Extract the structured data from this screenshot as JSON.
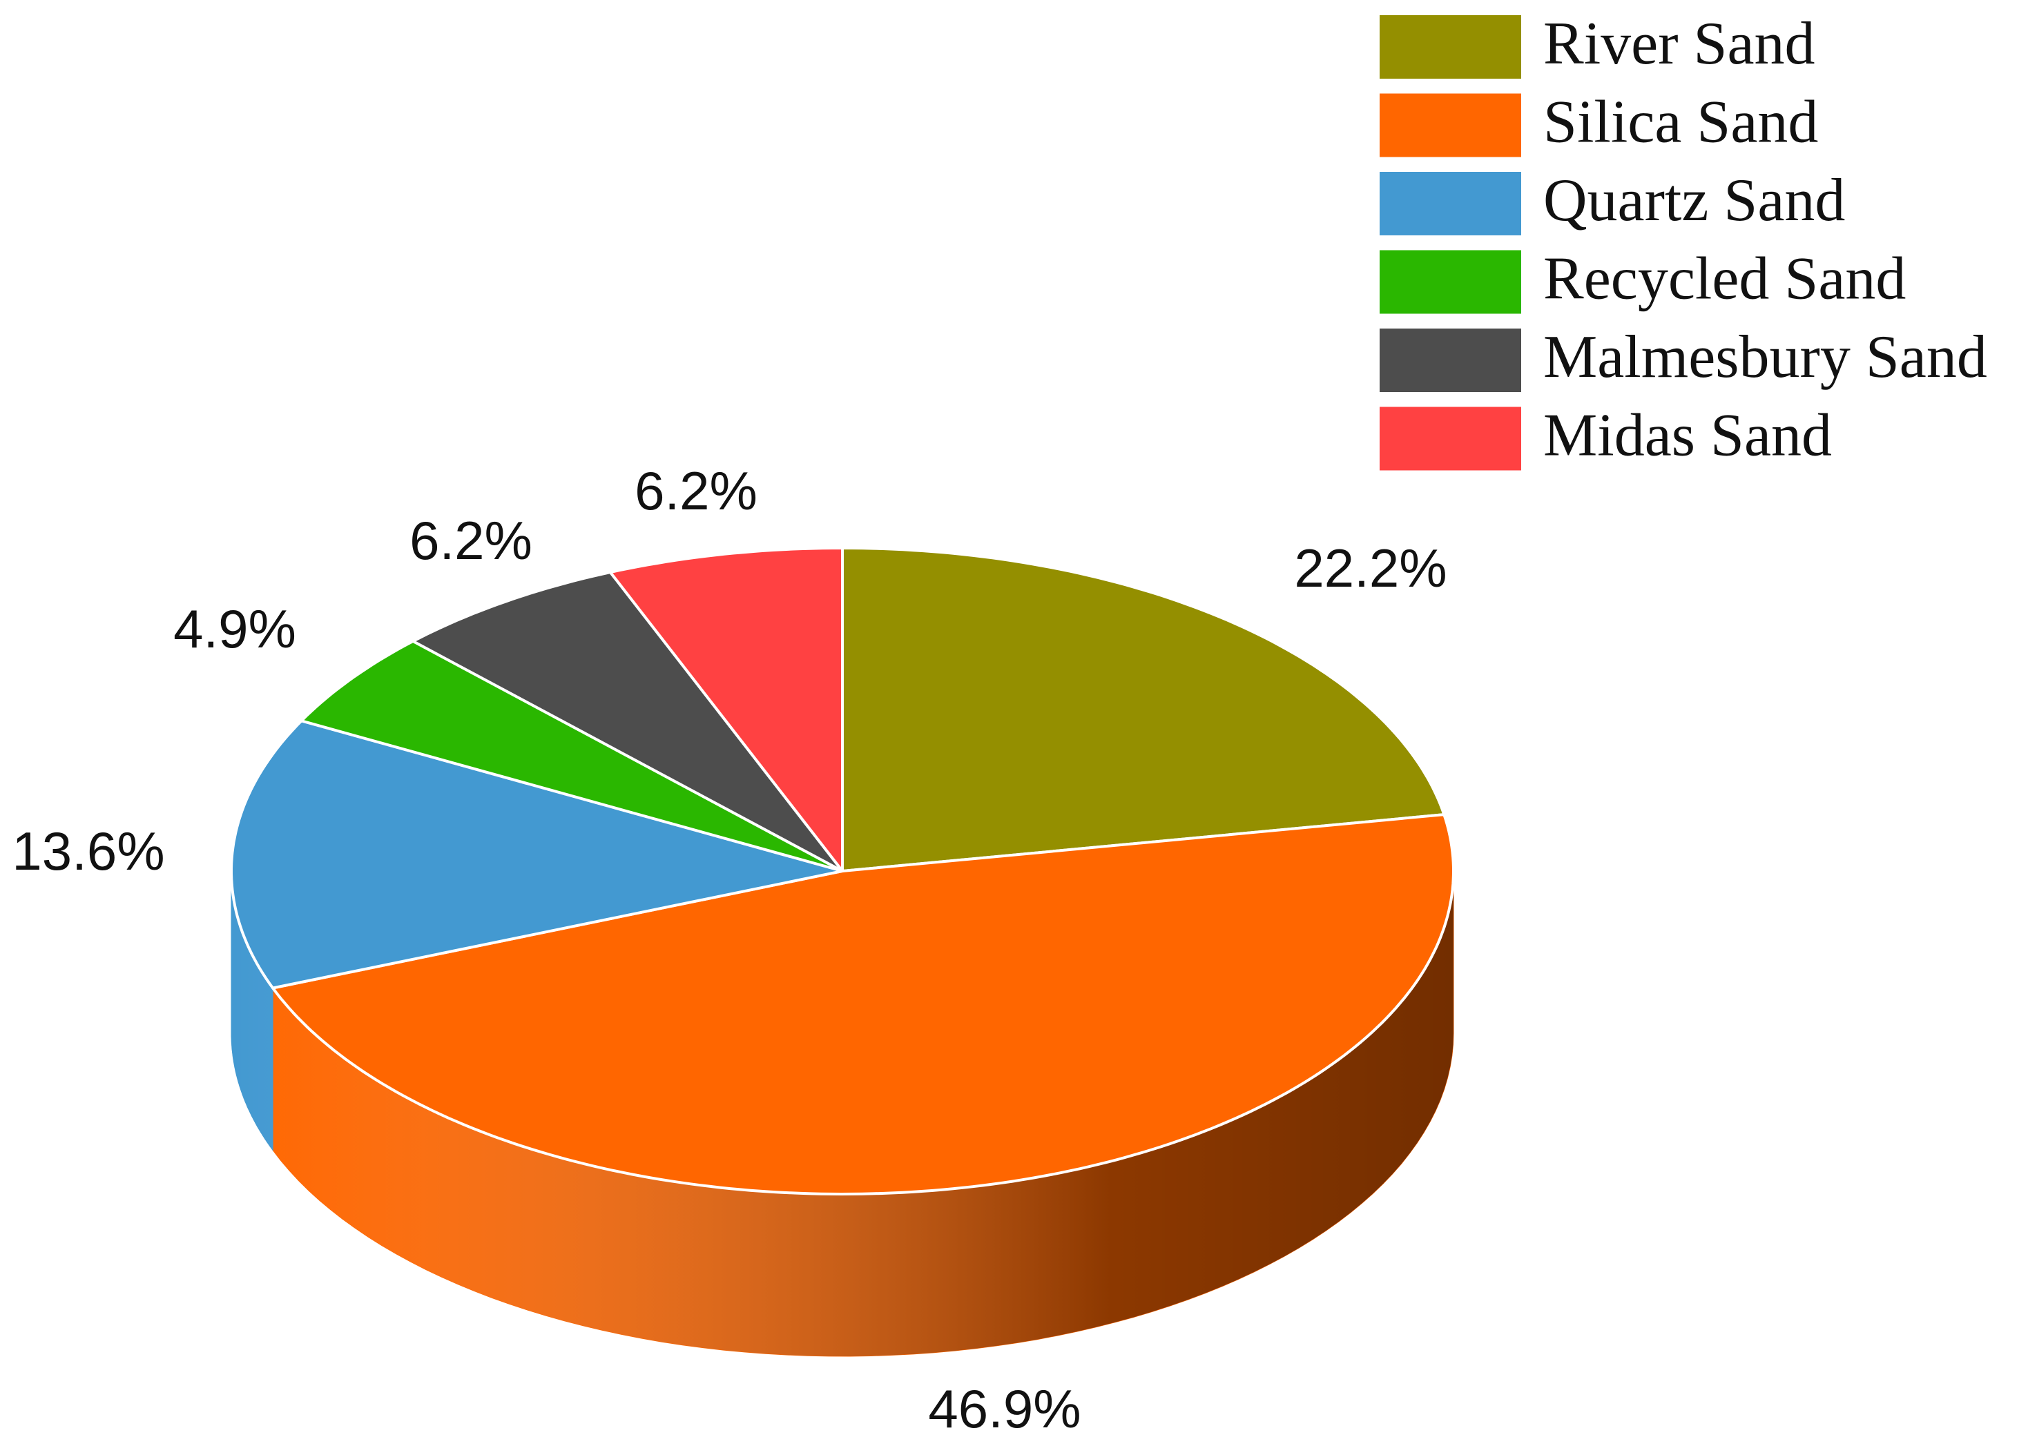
{
  "chart_data": {
    "type": "pie",
    "style": "3d",
    "slices": [
      {
        "name": "River Sand",
        "value": 22.2,
        "label": "22.2%",
        "color": "#948f00"
      },
      {
        "name": "Silica Sand",
        "value": 46.9,
        "label": "46.9%",
        "color": "#ff6600"
      },
      {
        "name": "Quartz Sand",
        "value": 13.6,
        "label": "13.6%",
        "color": "#4399d1"
      },
      {
        "name": "Recycled Sand",
        "value": 4.9,
        "label": "4.9%",
        "color": "#2ab700"
      },
      {
        "name": "Malmesbury Sand",
        "value": 6.2,
        "label": "6.2%",
        "color": "#4d4d4d"
      },
      {
        "name": "Midas Sand",
        "value": 6.2,
        "label": "6.2%",
        "color": "#ff4142"
      }
    ],
    "legend": {
      "position": "top-right",
      "entries": [
        "River Sand",
        "Silica Sand",
        "Quartz Sand",
        "Recycled Sand",
        "Malmesbury Sand",
        "Midas Sand"
      ]
    }
  }
}
